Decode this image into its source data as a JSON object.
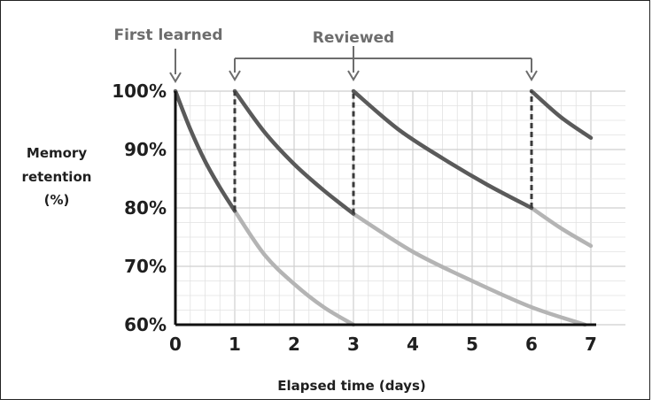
{
  "chart_data": {
    "type": "line",
    "title": "",
    "xlabel": "Elapsed time (days)",
    "ylabel_lines": [
      "Memory",
      "retention",
      "(%)"
    ],
    "xlim": [
      0,
      7
    ],
    "ylim": [
      60,
      100
    ],
    "x_ticks": [
      "0",
      "1",
      "2",
      "3",
      "4",
      "5",
      "6",
      "7"
    ],
    "y_ticks": [
      "100%",
      "90%",
      "80%",
      "70%",
      "60%"
    ],
    "y_tick_values": [
      100,
      90,
      80,
      70,
      60
    ],
    "grid": true,
    "annotations": {
      "first_learned": "First learned",
      "reviewed": "Reviewed",
      "first_learned_x": 0,
      "reviewed_x": [
        1,
        3,
        6
      ]
    },
    "colors": {
      "retained_curve": "#5a5a5a",
      "forgetting_curve": "#b4b4b4",
      "annotation": "#6d6d6d",
      "grid": "#e2e2e2"
    },
    "series": [
      {
        "role": "retained",
        "x": [
          0,
          0.25,
          0.5,
          0.75,
          1
        ],
        "y": [
          100,
          93.5,
          88.0,
          83.5,
          79.5
        ]
      },
      {
        "role": "retained",
        "x": [
          1,
          1.5,
          2,
          2.5,
          3
        ],
        "y": [
          100,
          93.0,
          87.5,
          83.0,
          79.0
        ]
      },
      {
        "role": "retained",
        "x": [
          3,
          3.75,
          4.5,
          5.25,
          6
        ],
        "y": [
          100,
          93.5,
          88.5,
          84.0,
          80.0
        ]
      },
      {
        "role": "retained",
        "x": [
          6,
          6.5,
          7
        ],
        "y": [
          100,
          95.5,
          92.0
        ]
      },
      {
        "role": "forgetting",
        "x": [
          1,
          1.5,
          2,
          2.5,
          3
        ],
        "y": [
          79.5,
          72.0,
          67.0,
          63.0,
          60.0
        ]
      },
      {
        "role": "forgetting",
        "x": [
          3,
          4,
          5,
          6,
          6.9
        ],
        "y": [
          79.0,
          72.5,
          67.5,
          63.0,
          60.0
        ]
      },
      {
        "role": "forgetting",
        "x": [
          6,
          6.5,
          7
        ],
        "y": [
          80.0,
          76.5,
          73.5
        ]
      }
    ],
    "review_drops": [
      {
        "x": 1,
        "from": 79.5,
        "to": 100
      },
      {
        "x": 3,
        "from": 79.0,
        "to": 100
      },
      {
        "x": 6,
        "from": 80.0,
        "to": 100
      }
    ]
  }
}
